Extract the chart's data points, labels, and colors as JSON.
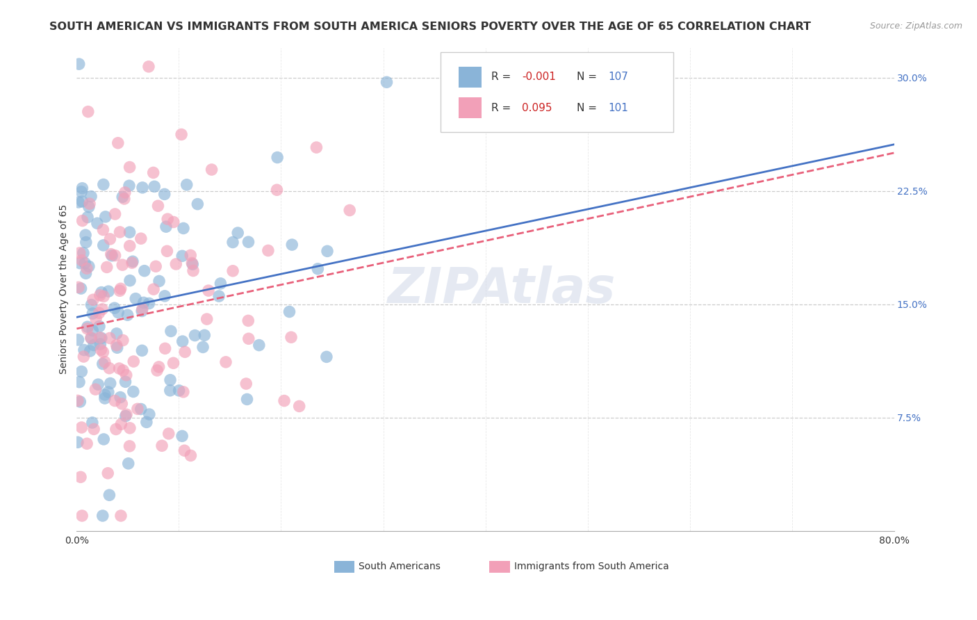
{
  "title": "SOUTH AMERICAN VS IMMIGRANTS FROM SOUTH AMERICA SENIORS POVERTY OVER THE AGE OF 65 CORRELATION CHART",
  "source": "Source: ZipAtlas.com",
  "ylabel": "Seniors Poverty Over the Age of 65",
  "xlim": [
    0.0,
    0.8
  ],
  "ylim": [
    0.0,
    0.32
  ],
  "xticks": [
    0.0,
    0.1,
    0.2,
    0.3,
    0.4,
    0.5,
    0.6,
    0.7,
    0.8
  ],
  "yticks": [
    0.0,
    0.075,
    0.15,
    0.225,
    0.3
  ],
  "yticklabels": [
    "",
    "7.5%",
    "15.0%",
    "22.5%",
    "30.0%"
  ],
  "grid_yticks": [
    0.075,
    0.15,
    0.225,
    0.3
  ],
  "blue_color": "#8ab4d8",
  "pink_color": "#f2a0b8",
  "blue_line_color": "#4472c4",
  "pink_line_color": "#e8607a",
  "watermark": "ZIPAtlas",
  "title_fontsize": 11.5,
  "axis_label_fontsize": 10,
  "tick_fontsize": 10,
  "N_blue": 107,
  "N_pink": 101,
  "blue_R": -0.001,
  "pink_R": 0.095,
  "seed_blue": 42,
  "seed_pink": 7
}
